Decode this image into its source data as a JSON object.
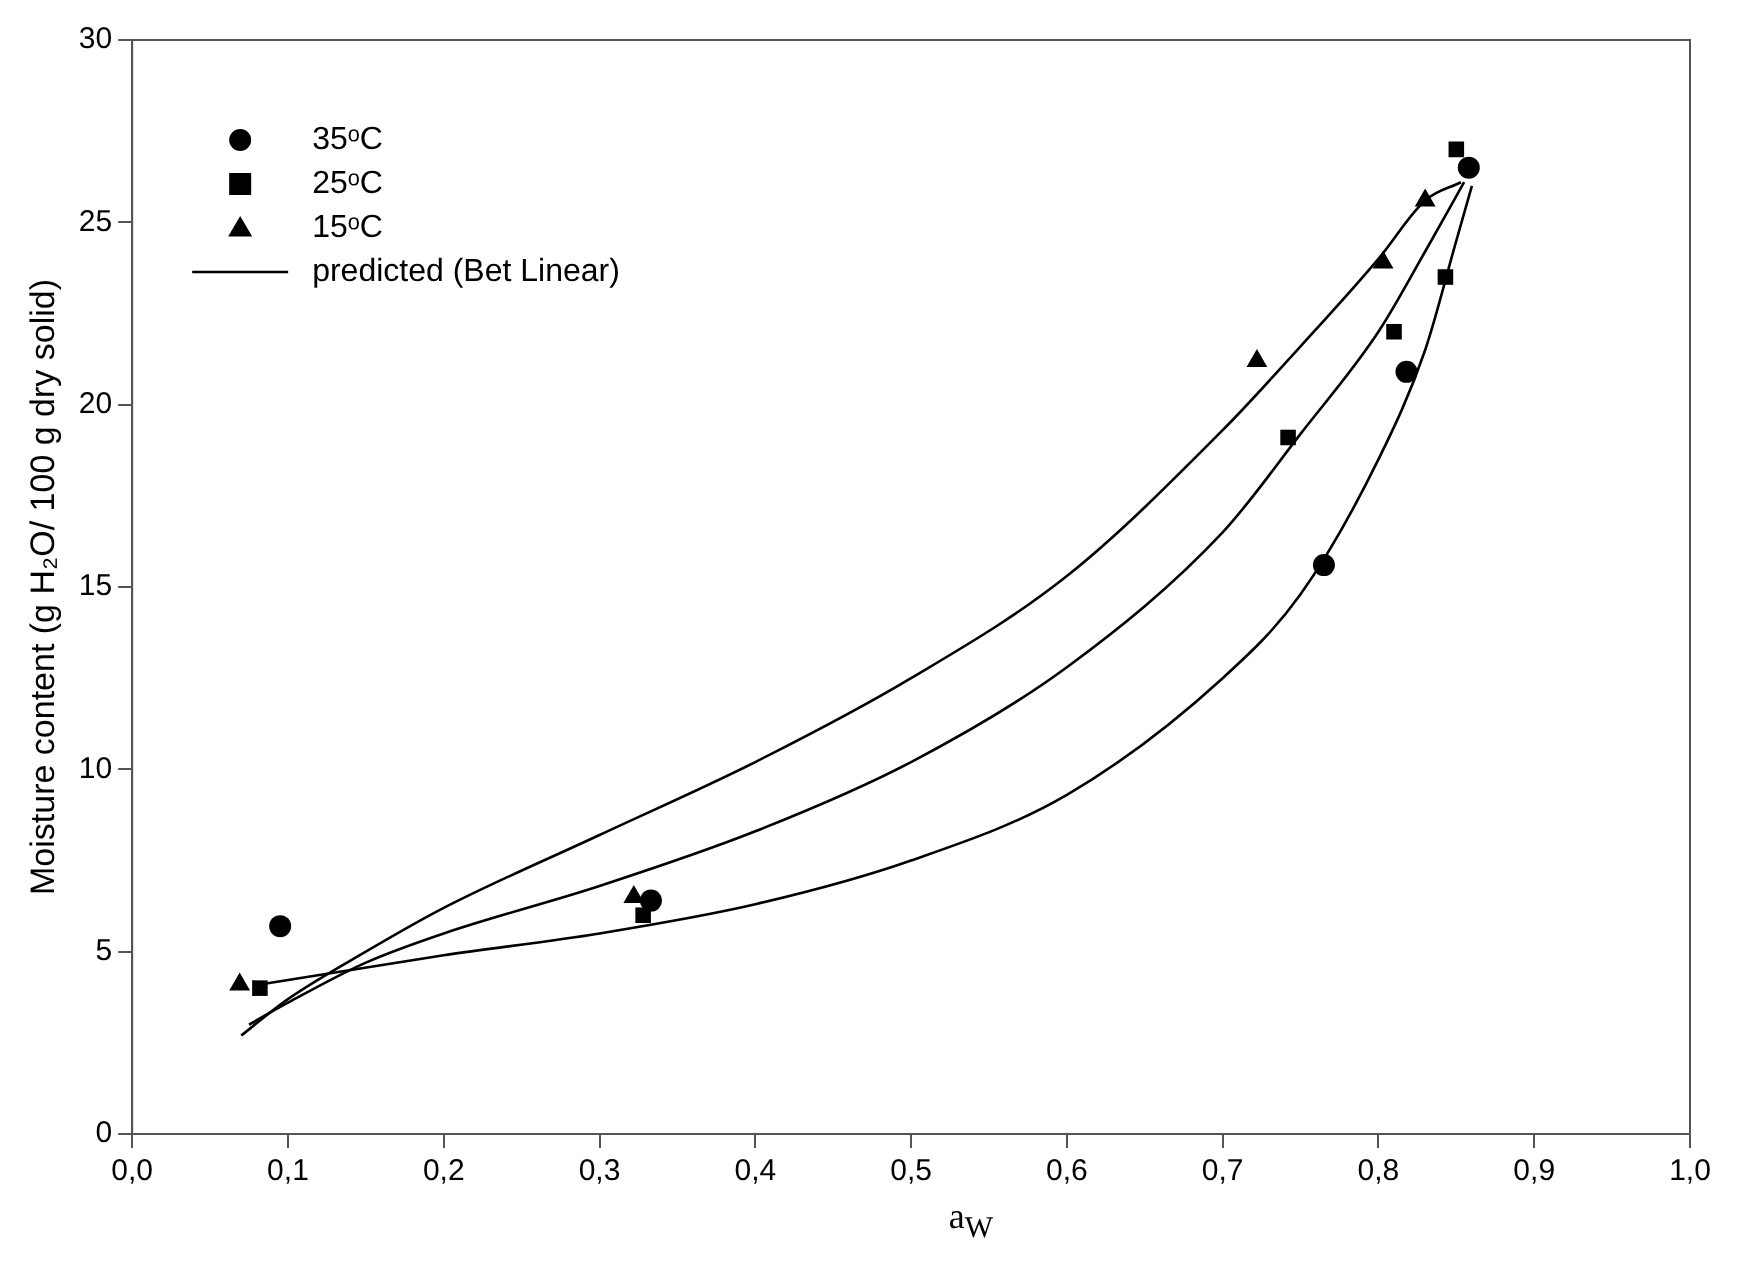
{
  "chart_data": {
    "type": "scatter",
    "xlabel": "a$_{W}$",
    "ylabel": "Moisture content (g H₂O/ 100 g dry solid)",
    "xlim": [
      0,
      1
    ],
    "ylim": [
      0,
      30
    ],
    "xticks": [
      {
        "value": 0,
        "label": "0,0"
      },
      {
        "value": 0.1,
        "label": "0,1"
      },
      {
        "value": 0.2,
        "label": "0,2"
      },
      {
        "value": 0.3,
        "label": "0,3"
      },
      {
        "value": 0.4,
        "label": "0,4"
      },
      {
        "value": 0.5,
        "label": "0,5"
      },
      {
        "value": 0.6,
        "label": "0,6"
      },
      {
        "value": 0.7,
        "label": "0,7"
      },
      {
        "value": 0.8,
        "label": "0,8"
      },
      {
        "value": 0.9,
        "label": "0,9"
      },
      {
        "value": 1,
        "label": "1,0"
      }
    ],
    "yticks": [
      0,
      5,
      10,
      15,
      20,
      25,
      30
    ],
    "grid": false,
    "legend": "top left",
    "series": [
      {
        "name": "35ᵒC",
        "type": "scatter",
        "marker": "circle",
        "color": "#000000",
        "x": [
          0.095,
          0.333,
          0.765,
          0.818,
          0.858
        ],
        "values": [
          5.7,
          6.4,
          15.6,
          20.9,
          26.5
        ]
      },
      {
        "name": "25ᵒC",
        "type": "scatter",
        "marker": "square",
        "color": "#000000",
        "x": [
          0.082,
          0.328,
          0.742,
          0.81,
          0.843,
          0.85
        ],
        "values": [
          4.0,
          6.0,
          19.1,
          22.0,
          23.5,
          27.0
        ]
      },
      {
        "name": "15ᵒC",
        "type": "scatter",
        "marker": "triangle",
        "color": "#000000",
        "x": [
          0.069,
          0.322,
          0.722,
          0.803,
          0.83
        ],
        "values": [
          4.1,
          6.5,
          21.2,
          23.9,
          25.6
        ]
      },
      {
        "name": "predicted (Bet Linear)",
        "type": "line",
        "marker": "none",
        "line_style": "solid",
        "color": "#000000",
        "x": [
          0.082,
          0.2,
          0.3,
          0.4,
          0.5,
          0.6,
          0.7,
          0.75,
          0.8,
          0.83,
          0.85,
          0.86
        ],
        "values": [
          4.1,
          4.9,
          5.5,
          6.3,
          7.5,
          9.3,
          12.5,
          14.8,
          18.5,
          21.5,
          24.5,
          26.0
        ]
      },
      {
        "type": "line",
        "marker": "none",
        "line_style": "solid",
        "color": "#000000",
        "x": [
          0.075,
          0.1,
          0.15,
          0.2,
          0.3,
          0.4,
          0.5,
          0.6,
          0.7,
          0.75,
          0.8,
          0.83,
          0.855
        ],
        "values": [
          3.0,
          3.6,
          4.7,
          5.5,
          6.8,
          8.3,
          10.2,
          12.8,
          16.5,
          19.2,
          22.0,
          24.2,
          26.1
        ]
      },
      {
        "type": "line",
        "marker": "none",
        "line_style": "solid",
        "color": "#000000",
        "x": [
          0.07,
          0.1,
          0.15,
          0.2,
          0.3,
          0.4,
          0.5,
          0.6,
          0.7,
          0.75,
          0.8,
          0.83,
          0.853
        ],
        "values": [
          2.7,
          3.7,
          5.0,
          6.2,
          8.2,
          10.2,
          12.5,
          15.3,
          19.3,
          21.6,
          24.0,
          25.6,
          26.1
        ]
      }
    ]
  }
}
